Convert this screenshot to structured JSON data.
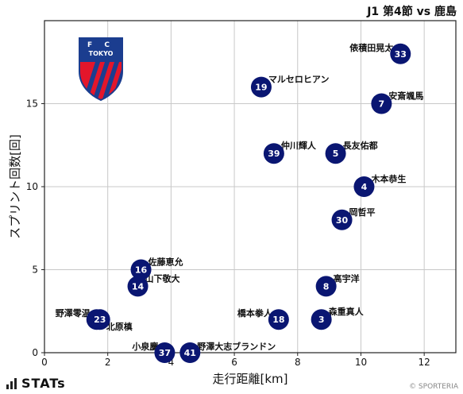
{
  "header": {
    "title": "J1 第4節 vs 鹿島"
  },
  "branding": {
    "stats_logo": "STATs",
    "credit": "© SPORTERIA",
    "crest_text_top": "F C",
    "crest_text_mid": "TOKYO"
  },
  "chart_data": {
    "type": "scatter",
    "xlabel": "走行距離[km]",
    "ylabel": "スプリント回数[回]",
    "xlim": [
      0,
      13
    ],
    "ylim": [
      0,
      20
    ],
    "xticks": [
      0,
      2,
      4,
      6,
      8,
      10,
      12
    ],
    "yticks": [
      0,
      5,
      10,
      15
    ],
    "grid": true,
    "marker_color": "#0a1672",
    "points": [
      {
        "number": "33",
        "name": "俵積田晃太",
        "x": 11.25,
        "y": 18
      },
      {
        "number": "19",
        "name": "マルセロヒアン",
        "x": 6.85,
        "y": 16
      },
      {
        "number": "7",
        "name": "安斎颯馬",
        "x": 10.65,
        "y": 15
      },
      {
        "number": "39",
        "name": "仲川輝人",
        "x": 7.25,
        "y": 12
      },
      {
        "number": "5",
        "name": "長友佑都",
        "x": 9.2,
        "y": 12
      },
      {
        "number": "4",
        "name": "木本恭生",
        "x": 10.1,
        "y": 10
      },
      {
        "number": "30",
        "name": "岡哲平",
        "x": 9.4,
        "y": 8
      },
      {
        "number": "16",
        "name": "佐藤恵允",
        "x": 3.05,
        "y": 5
      },
      {
        "number": "14",
        "name": "山下敬大",
        "x": 2.95,
        "y": 4
      },
      {
        "number": "8",
        "name": "高宇洋",
        "x": 8.9,
        "y": 4
      },
      {
        "number": "2",
        "name": "野澤零温",
        "x": 1.65,
        "y": 2
      },
      {
        "number": "23",
        "name": "北原槙",
        "x": 1.75,
        "y": 2
      },
      {
        "number": "18",
        "name": "橋本拳人",
        "x": 7.4,
        "y": 2
      },
      {
        "number": "3",
        "name": "森重真人",
        "x": 8.75,
        "y": 2
      },
      {
        "number": "37",
        "name": "小泉慶",
        "x": 3.8,
        "y": 0
      },
      {
        "number": "41",
        "name": "野澤大志ブランドン",
        "x": 4.6,
        "y": 0
      }
    ]
  }
}
